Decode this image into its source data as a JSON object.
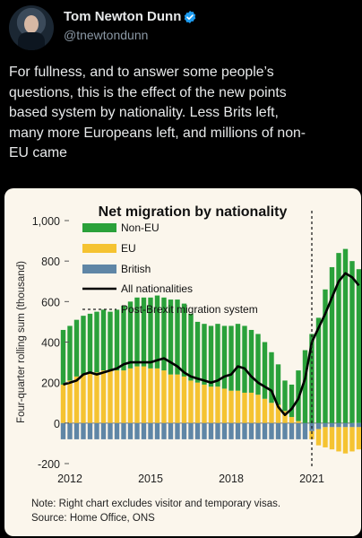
{
  "tweet": {
    "author_name": "Tom Newton Dunn",
    "author_handle": "@tnewtondunn",
    "verified_icon": "verified-badge-icon",
    "text": "For fullness, and to answer some people’s\nquestions, this is the effect of the new points\nbased system by nationality. Less Brits left,\nmany more Europeans left, and millions of non-\nEU came"
  },
  "colors": {
    "non_eu": "#2aa13a",
    "eu": "#f5c331",
    "british": "#5f86a6",
    "all": "#000000",
    "background": "#fbf6ec"
  },
  "chart_data": {
    "type": "bar",
    "title": "Net migration by nationality",
    "ylabel": "Four-quarter rolling sum (thousand)",
    "ylim": [
      -200,
      1000
    ],
    "yticks": [
      "1,000",
      "800",
      "600",
      "400",
      "200",
      "0",
      "-200"
    ],
    "xticks": [
      "2012",
      "2015",
      "2018",
      "2021"
    ],
    "xrange": [
      2012.0,
      2022.5
    ],
    "legend": {
      "non_eu": "Non-EU",
      "eu": "EU",
      "british": "British",
      "all": "All nationalities",
      "policy": "Post-Brexit migration system"
    },
    "policy_x": 2021.0,
    "note": "Note: Right chart excludes visitor and temporary visas.",
    "source": "Source: Home Office, ONS",
    "periods": [
      2011.75,
      2012.0,
      2012.25,
      2012.5,
      2012.75,
      2013.0,
      2013.25,
      2013.5,
      2013.75,
      2014.0,
      2014.25,
      2014.5,
      2014.75,
      2015.0,
      2015.25,
      2015.5,
      2015.75,
      2016.0,
      2016.25,
      2016.5,
      2016.75,
      2017.0,
      2017.25,
      2017.5,
      2017.75,
      2018.0,
      2018.25,
      2018.5,
      2018.75,
      2019.0,
      2019.25,
      2019.5,
      2019.75,
      2020.0,
      2020.25,
      2020.5,
      2020.75,
      2021.0,
      2021.25,
      2021.5,
      2021.75,
      2022.0,
      2022.25,
      2022.5,
      2022.75
    ],
    "series": [
      {
        "name": "Non-EU",
        "values": [
          270,
          270,
          280,
          290,
          290,
          300,
          300,
          290,
          300,
          320,
          330,
          340,
          340,
          350,
          360,
          360,
          370,
          370,
          360,
          330,
          300,
          300,
          300,
          310,
          310,
          320,
          330,
          330,
          310,
          300,
          280,
          250,
          200,
          150,
          160,
          250,
          360,
          440,
          520,
          660,
          770,
          840,
          860,
          800,
          760
        ]
      },
      {
        "name": "EU",
        "values": [
          190,
          210,
          230,
          240,
          250,
          250,
          260,
          260,
          260,
          260,
          270,
          280,
          280,
          270,
          270,
          260,
          240,
          240,
          230,
          210,
          200,
          190,
          180,
          180,
          170,
          160,
          160,
          150,
          150,
          140,
          120,
          100,
          90,
          60,
          30,
          10,
          0,
          -40,
          -80,
          -100,
          -110,
          -120,
          -130,
          -120,
          -110
        ]
      },
      {
        "name": "British",
        "values": [
          -80,
          -80,
          -80,
          -80,
          -80,
          -80,
          -80,
          -80,
          -80,
          -80,
          -80,
          -80,
          -80,
          -80,
          -80,
          -80,
          -80,
          -80,
          -80,
          -80,
          -80,
          -80,
          -80,
          -80,
          -80,
          -80,
          -80,
          -80,
          -80,
          -80,
          -80,
          -80,
          -80,
          -80,
          -80,
          -80,
          -80,
          -40,
          -30,
          -20,
          -20,
          -20,
          -20,
          -20,
          -20
        ]
      },
      {
        "name": "All nationalities",
        "values": [
          190,
          200,
          210,
          240,
          250,
          240,
          250,
          260,
          270,
          290,
          300,
          300,
          300,
          300,
          310,
          320,
          300,
          280,
          250,
          230,
          220,
          210,
          200,
          210,
          230,
          240,
          280,
          270,
          230,
          200,
          180,
          160,
          80,
          40,
          70,
          120,
          220,
          400,
          470,
          540,
          620,
          700,
          740,
          720,
          680
        ]
      }
    ]
  }
}
